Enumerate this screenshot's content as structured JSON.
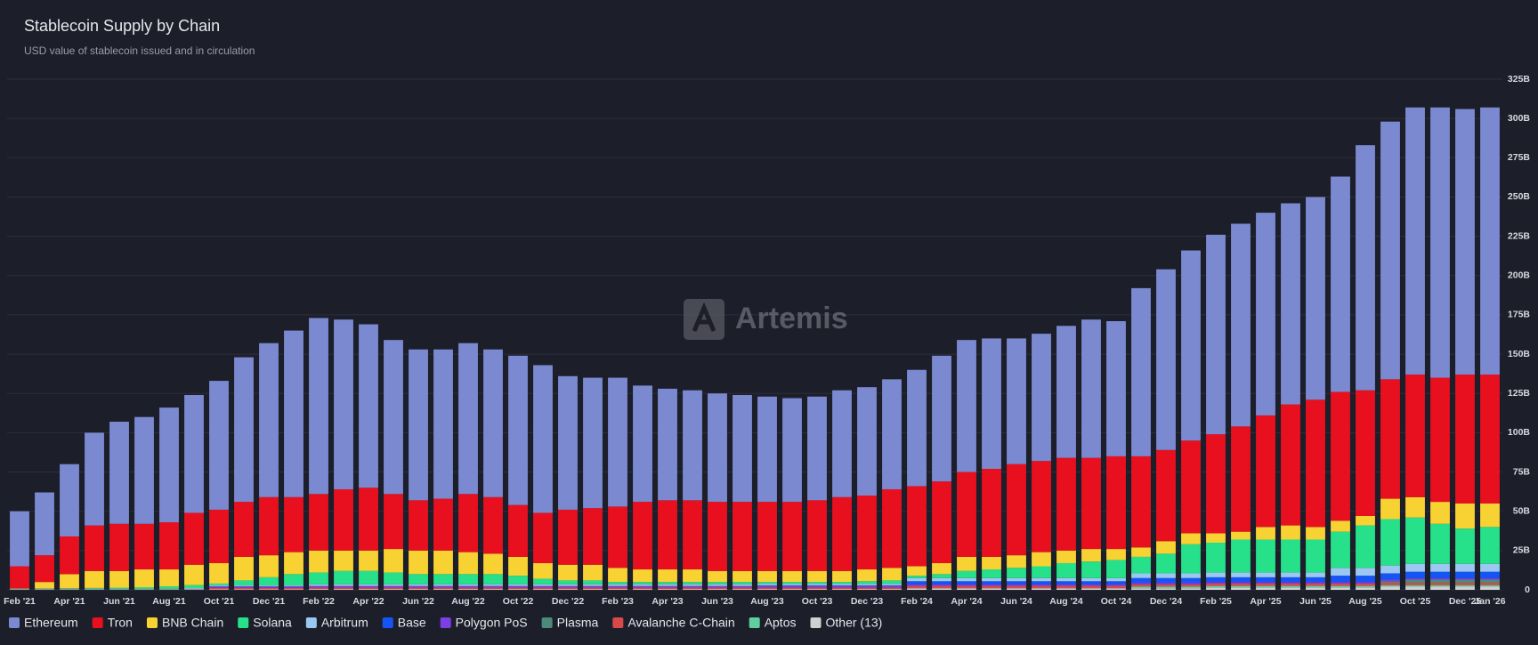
{
  "chart_data": {
    "type": "stacked-bar",
    "title": "Stablecoin Supply by Chain",
    "subtitle": "USD value of stablecoin issued and in circulation",
    "watermark": "Artemis",
    "grid": true,
    "legend": "bottom",
    "y_axis_side": "right",
    "categories": [
      "Feb '21",
      null,
      "Apr '21",
      null,
      "Jun '21",
      null,
      "Aug '21",
      null,
      "Oct '21",
      null,
      "Dec '21",
      null,
      "Feb '22",
      null,
      "Apr '22",
      null,
      "Jun '22",
      null,
      "Aug '22",
      null,
      "Oct '22",
      null,
      "Dec '22",
      null,
      "Feb '23",
      null,
      "Apr '23",
      null,
      "Jun '23",
      null,
      "Aug '23",
      null,
      "Oct '23",
      null,
      "Dec '23",
      null,
      "Feb '24",
      null,
      "Apr '24",
      null,
      "Jun '24",
      null,
      "Aug '24",
      null,
      "Oct '24",
      null,
      "Dec '24",
      null,
      "Feb '25",
      null,
      "Apr '25",
      null,
      "Jun '25",
      null,
      "Aug '25",
      null,
      "Oct '25",
      null,
      "Dec '25",
      "Jan '26"
    ],
    "ylim": [
      0,
      325
    ],
    "yticks": [
      0,
      {
        "value": 25,
        "label": "25B"
      },
      {
        "value": 50,
        "label": "50B"
      },
      {
        "value": 75,
        "label": "75B"
      },
      {
        "value": 100,
        "label": "100B"
      },
      {
        "value": 125,
        "label": "125B"
      },
      {
        "value": 150,
        "label": "150B"
      },
      {
        "value": 175,
        "label": "175B"
      },
      {
        "value": 200,
        "label": "200B"
      },
      {
        "value": 225,
        "label": "225B"
      },
      {
        "value": 250,
        "label": "250B"
      },
      {
        "value": 275,
        "label": "275B"
      },
      {
        "value": 300,
        "label": "300B"
      },
      {
        "value": 325,
        "label": "325B"
      }
    ],
    "series": [
      {
        "name": "Ethereum",
        "color": "#7b89d0",
        "values": [
          35,
          40,
          46,
          59,
          65,
          68,
          73,
          75,
          82,
          92,
          98,
          106,
          112,
          108,
          104,
          98,
          96,
          95,
          96,
          94,
          95,
          94,
          85,
          83,
          82,
          74,
          71,
          70,
          69,
          68,
          67,
          66,
          66,
          68,
          69,
          70,
          74,
          80,
          84,
          83,
          80,
          81,
          84,
          88,
          86,
          107,
          115,
          121,
          127,
          129,
          129,
          128,
          129,
          137,
          156,
          164,
          170,
          172,
          169,
          170
        ]
      },
      {
        "name": "Tron",
        "color": "#e8101f",
        "values": [
          14,
          17,
          24,
          29,
          30,
          29,
          30,
          33,
          34,
          35,
          37,
          35,
          36,
          39,
          40,
          35,
          32,
          33,
          37,
          36,
          33,
          32,
          35,
          36,
          39,
          43,
          44,
          44,
          44,
          44,
          44,
          44,
          45,
          47,
          47,
          50,
          51,
          52,
          54,
          56,
          58,
          58,
          59,
          58,
          59,
          58,
          58,
          59,
          63,
          67,
          71,
          77,
          81,
          82,
          80,
          76,
          78,
          79,
          82,
          82
        ]
      },
      {
        "name": "BNB Chain",
        "color": "#f7d232",
        "values": [
          0.2,
          4.1,
          9,
          10.8,
          10.6,
          11.3,
          10.8,
          13,
          13,
          15,
          14,
          14,
          14,
          13,
          13,
          15,
          15,
          15,
          14,
          13,
          12,
          10,
          10,
          10,
          9,
          8,
          8,
          8,
          7,
          7,
          7,
          7,
          7,
          7,
          7.5,
          8,
          6,
          7,
          9,
          8,
          8,
          9,
          8,
          8,
          7,
          6,
          8,
          7,
          6,
          5,
          8,
          9,
          8,
          7,
          6,
          13,
          13,
          14,
          16,
          15
        ]
      },
      {
        "name": "Solana",
        "color": "#26e08a",
        "values": [
          0.2,
          0.3,
          0.4,
          0.6,
          0.8,
          1.1,
          1.6,
          1.9,
          1.2,
          3.2,
          5.2,
          7.2,
          7.5,
          8.5,
          8.5,
          7.5,
          6.5,
          6.5,
          6.5,
          6.5,
          5.5,
          3.5,
          2.5,
          2.5,
          1.5,
          1.5,
          1.5,
          1.5,
          1.5,
          1.5,
          1.2,
          1.2,
          1.2,
          1.2,
          1.7,
          2.2,
          1.5,
          2.5,
          4.5,
          5.5,
          6.5,
          7.5,
          9.5,
          10.5,
          11.5,
          10.5,
          12.5,
          18.5,
          19,
          21,
          21,
          21,
          21,
          23,
          27,
          29.5,
          29.5,
          25.5,
          22.5,
          23.5
        ]
      },
      {
        "name": "Arbitrum",
        "color": "#9cc7f0",
        "values": [
          0,
          0,
          0,
          0,
          0,
          0,
          0,
          0.5,
          0.5,
          0.5,
          0.5,
          0.5,
          1,
          1,
          1,
          1,
          1,
          1,
          1,
          1,
          1,
          1,
          1,
          1,
          1,
          1,
          1,
          1,
          1,
          1,
          1,
          1,
          1,
          1,
          1,
          1,
          2,
          2,
          2,
          2,
          2,
          2,
          2,
          2,
          2,
          3,
          3,
          3,
          3,
          3,
          3,
          3,
          3,
          5,
          5,
          5,
          5,
          5,
          5,
          5
        ]
      },
      {
        "name": "Base",
        "color": "#1555f5",
        "values": [
          0,
          0,
          0,
          0,
          0,
          0,
          0,
          0,
          0,
          0,
          0,
          0,
          0,
          0,
          0,
          0,
          0,
          0,
          0,
          0,
          0,
          0,
          0,
          0,
          0,
          0,
          0,
          0,
          0,
          0,
          0.3,
          0.3,
          0.3,
          0.3,
          0.3,
          0.3,
          2,
          2,
          2,
          2,
          2,
          2,
          2,
          2,
          2,
          3,
          3,
          3,
          3,
          3,
          3,
          3,
          3,
          4,
          4,
          4,
          4,
          4,
          4,
          4
        ]
      },
      {
        "name": "Polygon PoS",
        "color": "#7b3fe4",
        "values": [
          0.1,
          0.1,
          0.1,
          0.1,
          0.1,
          0.1,
          0.1,
          0.1,
          1,
          1,
          1,
          1,
          1,
          1,
          1,
          1,
          1,
          1,
          1,
          1,
          1,
          1,
          1,
          1,
          1,
          1,
          1,
          1,
          1,
          1,
          1,
          1,
          1,
          1,
          1,
          1,
          1,
          1,
          1,
          1,
          1,
          1,
          1,
          1,
          1,
          1,
          1,
          1,
          1,
          1,
          1,
          1,
          1,
          1,
          1,
          1,
          1,
          1,
          1,
          1
        ]
      },
      {
        "name": "Plasma",
        "color": "#4c8a7a",
        "values": [
          0,
          0,
          0,
          0,
          0,
          0,
          0,
          0,
          0,
          0,
          0,
          0,
          0,
          0,
          0,
          0,
          0,
          0,
          0,
          0,
          0,
          0,
          0,
          0,
          0,
          0,
          0,
          0,
          0,
          0,
          0,
          0,
          0,
          0,
          0,
          0,
          0,
          0,
          0,
          0,
          0,
          0,
          0,
          0,
          0,
          0,
          0,
          0,
          0,
          0,
          0,
          0,
          0,
          0,
          0,
          1,
          2,
          2,
          2,
          2
        ]
      },
      {
        "name": "Avalanche C-Chain",
        "color": "#d84a4a",
        "values": [
          0.2,
          0.2,
          0.2,
          0.2,
          0.2,
          0.2,
          0.2,
          0.2,
          1,
          1,
          1,
          1,
          1,
          1,
          1,
          1,
          1,
          1,
          1,
          1,
          1,
          1,
          1,
          1,
          1,
          1,
          1,
          1,
          1,
          1,
          1,
          1,
          1,
          1,
          1,
          1,
          1.5,
          1.5,
          1.5,
          1.5,
          1.5,
          1.5,
          1.5,
          1.5,
          1.5,
          1.5,
          1.5,
          1.5,
          1.5,
          1.5,
          1.5,
          1.5,
          1.5,
          1.5,
          1.5,
          1.5,
          1.5,
          1.5,
          1.5,
          1.5
        ]
      },
      {
        "name": "Aptos",
        "color": "#5fcf9f",
        "values": [
          0,
          0,
          0,
          0,
          0,
          0,
          0,
          0,
          0,
          0,
          0,
          0,
          0,
          0,
          0,
          0,
          0,
          0,
          0,
          0,
          0,
          0,
          0,
          0,
          0,
          0,
          0,
          0,
          0,
          0,
          0,
          0,
          0,
          0,
          0,
          0,
          0,
          0,
          0,
          0,
          0,
          0,
          0,
          0,
          0,
          1,
          1,
          1,
          1,
          1,
          1,
          1,
          1,
          1,
          1,
          1,
          1,
          1,
          1,
          1
        ]
      },
      {
        "name": "Other (13)",
        "color": "#d0d0d0",
        "values": [
          0.3,
          0.3,
          0.3,
          0.3,
          0.3,
          0.3,
          0.3,
          0.3,
          0.3,
          0.3,
          0.3,
          0.3,
          0.5,
          0.5,
          0.5,
          0.5,
          0.5,
          0.5,
          0.5,
          0.5,
          0.5,
          0.5,
          0.5,
          0.5,
          0.5,
          0.5,
          0.5,
          0.5,
          0.5,
          0.5,
          0.5,
          0.5,
          0.5,
          0.5,
          0.5,
          0.5,
          1,
          1,
          1,
          1,
          1,
          1,
          1,
          1,
          1,
          1,
          1,
          1,
          1.5,
          1.5,
          1.5,
          1.5,
          1.5,
          1.5,
          1.5,
          2,
          2,
          2,
          2,
          2
        ]
      }
    ]
  }
}
